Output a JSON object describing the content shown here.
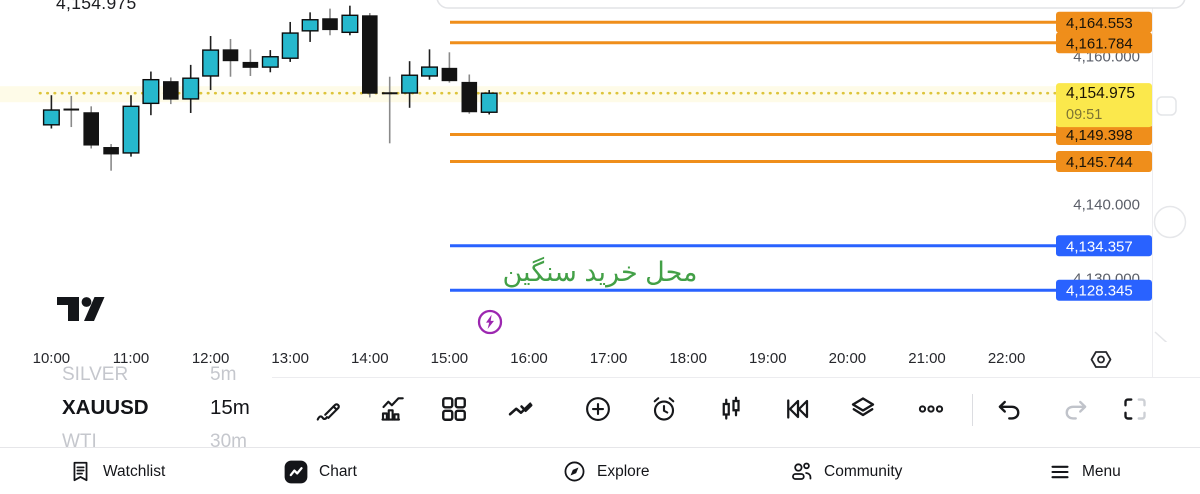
{
  "colors": {
    "up": "#26b8cd",
    "down": "#131313",
    "orange": "#ef8e1b",
    "blue": "#2962ff",
    "tag_yellow": "#fbe84c",
    "dotted": "#ddc43a",
    "band": "rgba(246,228,94,0.14)",
    "annotation_green": "#43a047",
    "purple": "#9c27b0"
  },
  "chart_data": {
    "type": "candlestick",
    "symbol": "XAUUSD",
    "timeframe": "15m",
    "ylim": [
      4122,
      4168
    ],
    "y_ticks": [
      {
        "value": 4160,
        "label": "4,160.000"
      },
      {
        "value": 4140,
        "label": "4,140.000"
      },
      {
        "value": 4130,
        "label": "4,130.000"
      }
    ],
    "x_ticks": [
      "10:00",
      "11:00",
      "12:00",
      "13:00",
      "14:00",
      "15:00",
      "16:00",
      "17:00",
      "18:00",
      "19:00",
      "20:00",
      "21:00",
      "22:00"
    ],
    "current_price": {
      "value": 4154.975,
      "label": "4,154.975",
      "time": "09:51"
    },
    "levels": [
      {
        "value": 4164.553,
        "label": "4,164.553",
        "color": "orange"
      },
      {
        "value": 4161.784,
        "label": "4,161.784",
        "color": "orange"
      },
      {
        "value": 4149.398,
        "label": "4,149.398",
        "color": "orange"
      },
      {
        "value": 4145.744,
        "label": "4,145.744",
        "color": "orange"
      },
      {
        "value": 4134.357,
        "label": "4,134.357",
        "color": "blue"
      },
      {
        "value": 4128.345,
        "label": "4,128.345",
        "color": "blue"
      }
    ],
    "annotation": {
      "text": "محل خرید سنگین",
      "color": "#43a047",
      "between_levels": [
        4134.357,
        4128.345
      ]
    },
    "candles": [
      {
        "t": "10:00",
        "o": 4150.7,
        "h": 4154.7,
        "l": 4150.2,
        "c": 4152.7
      },
      {
        "t": "10:15",
        "o": 4152.9,
        "h": 4154.6,
        "l": 4150.4,
        "c": 4152.7
      },
      {
        "t": "10:30",
        "o": 4152.4,
        "h": 4153.2,
        "l": 4147.5,
        "c": 4147.9
      },
      {
        "t": "10:45",
        "o": 4147.7,
        "h": 4148.1,
        "l": 4144.5,
        "c": 4146.7
      },
      {
        "t": "11:00",
        "o": 4146.9,
        "h": 4154.7,
        "l": 4146.4,
        "c": 4153.2
      },
      {
        "t": "11:15",
        "o": 4153.6,
        "h": 4157.9,
        "l": 4152.0,
        "c": 4156.8
      },
      {
        "t": "11:30",
        "o": 4156.6,
        "h": 4157.1,
        "l": 4153.5,
        "c": 4154.1
      },
      {
        "t": "11:45",
        "o": 4154.2,
        "h": 4158.8,
        "l": 4152.3,
        "c": 4157.0
      },
      {
        "t": "12:00",
        "o": 4157.3,
        "h": 4162.7,
        "l": 4155.4,
        "c": 4160.8
      },
      {
        "t": "12:15",
        "o": 4160.9,
        "h": 4162.3,
        "l": 4157.2,
        "c": 4159.3
      },
      {
        "t": "12:30",
        "o": 4159.2,
        "h": 4160.9,
        "l": 4157.3,
        "c": 4158.4
      },
      {
        "t": "12:45",
        "o": 4158.5,
        "h": 4160.8,
        "l": 4157.8,
        "c": 4159.9
      },
      {
        "t": "13:00",
        "o": 4159.7,
        "h": 4164.6,
        "l": 4159.2,
        "c": 4163.1
      },
      {
        "t": "13:15",
        "o": 4163.4,
        "h": 4165.9,
        "l": 4161.9,
        "c": 4164.9
      },
      {
        "t": "13:30",
        "o": 4165.1,
        "h": 4166.4,
        "l": 4162.8,
        "c": 4163.5
      },
      {
        "t": "13:45",
        "o": 4163.2,
        "h": 4166.8,
        "l": 4162.8,
        "c": 4165.5
      },
      {
        "t": "14:00",
        "o": 4165.5,
        "h": 4165.8,
        "l": 4154.4,
        "c": 4154.9
      },
      {
        "t": "14:15",
        "o": 4155.1,
        "h": 4157.2,
        "l": 4148.2,
        "c": 4154.9
      },
      {
        "t": "14:30",
        "o": 4155.0,
        "h": 4159.3,
        "l": 4153.0,
        "c": 4157.4
      },
      {
        "t": "14:45",
        "o": 4157.3,
        "h": 4160.9,
        "l": 4156.8,
        "c": 4158.5
      },
      {
        "t": "15:00",
        "o": 4158.4,
        "h": 4160.5,
        "l": 4156.4,
        "c": 4156.6
      },
      {
        "t": "15:15",
        "o": 4156.5,
        "h": 4157.5,
        "l": 4152.2,
        "c": 4152.4
      },
      {
        "t": "15:30",
        "o": 4152.4,
        "h": 4155.4,
        "l": 4152.1,
        "c": 4154.975
      }
    ]
  },
  "symbol_picker": {
    "items": [
      {
        "symbol": "SILVER",
        "timeframe": "5m",
        "active": false
      },
      {
        "symbol": "XAUUSD",
        "timeframe": "15m",
        "active": true
      },
      {
        "symbol": "WTI",
        "timeframe": "30m",
        "active": false
      }
    ]
  },
  "toolbar": {
    "icons": [
      "draw",
      "indicators",
      "layout-grid",
      "patterns",
      "add",
      "alert",
      "candle-style",
      "replay",
      "layers",
      "more",
      "undo",
      "redo",
      "fullscreen"
    ]
  },
  "time_axis": {
    "settings_icon": "chart-settings-hexagon-icon"
  },
  "bottom_nav": {
    "items": [
      {
        "label": "Watchlist",
        "icon": "watchlist-icon",
        "active": false
      },
      {
        "label": "Chart",
        "icon": "chart-icon",
        "active": true
      },
      {
        "label": "Explore",
        "icon": "explore-icon",
        "active": false
      },
      {
        "label": "Community",
        "icon": "community-icon",
        "active": false
      },
      {
        "label": "Menu",
        "icon": "menu-icon",
        "active": false
      }
    ]
  }
}
